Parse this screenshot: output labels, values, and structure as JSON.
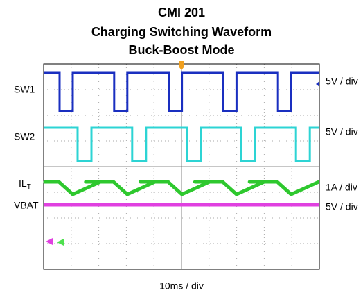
{
  "title": [
    "CMI 201",
    "Charging Switching Waveform",
    "Buck-Boost Mode"
  ],
  "channels": [
    {
      "name": "SW1",
      "scale": "5V / div"
    },
    {
      "name": "SW2",
      "scale": "5V / div"
    },
    {
      "name": "IL",
      "subscript": "T",
      "scale": "1A / div"
    },
    {
      "name": "VBAT",
      "scale": "5V / div"
    }
  ],
  "timebase": "10ms / div"
}
